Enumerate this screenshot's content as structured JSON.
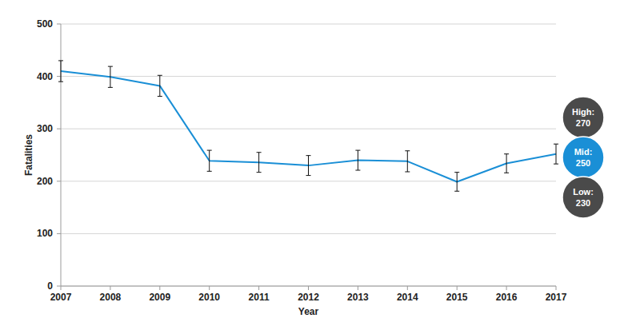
{
  "chart_data": {
    "type": "line",
    "x_label": "Year",
    "y_label": "Fatalities",
    "categories": [
      "2007",
      "2008",
      "2009",
      "2010",
      "2011",
      "2012",
      "2013",
      "2014",
      "2015",
      "2016",
      "2017"
    ],
    "series": [
      {
        "name": "Fatalities",
        "color": "#1a8fd6",
        "marker": "none",
        "values": [
          410,
          399,
          382,
          239,
          236,
          230,
          240,
          238,
          199,
          234,
          252
        ],
        "errors": [
          20,
          20,
          20,
          20,
          19,
          19,
          19,
          20,
          18,
          18,
          19
        ]
      }
    ],
    "ylim": [
      0,
      500
    ],
    "yticks": [
      0,
      100,
      200,
      300,
      400,
      500
    ],
    "grid": true,
    "annotations": [
      {
        "label": "High:",
        "value": 270,
        "color": "#4a4a4a"
      },
      {
        "label": "Mid:",
        "value": 250,
        "color": "#1a8fd6"
      },
      {
        "label": "Low:",
        "value": 230,
        "color": "#4a4a4a"
      }
    ]
  }
}
